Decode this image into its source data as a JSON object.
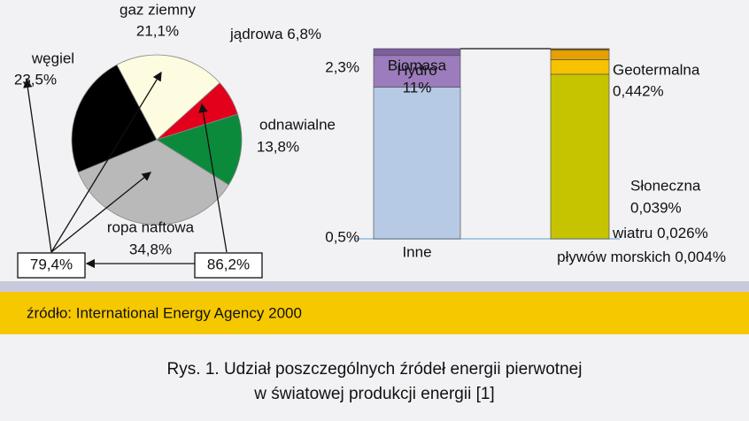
{
  "chart_data": [
    {
      "type": "pie",
      "categories": [
        "gaz ziemny",
        "jądrowa",
        "odnawialne",
        "ropa naftowa",
        "węgiel"
      ],
      "values": [
        21.1,
        6.8,
        13.8,
        34.8,
        23.5
      ],
      "value_labels": [
        "21,1%",
        "6,8%",
        "13,8%",
        "34,8%",
        "23,5%"
      ],
      "colors": [
        "#fdfbe0",
        "#e3001b",
        "#0b8a3c",
        "#b9b9b9",
        "#000000"
      ],
      "annotations": [
        "79,4%",
        "86,2%"
      ]
    },
    {
      "type": "stacked_bar",
      "bars": [
        {
          "categories": [
            "Biomasa",
            "Hydro",
            "Inne"
          ],
          "values": [
            11,
            2.3,
            0.5
          ],
          "value_labels": [
            "11%",
            "2,3%",
            "0,5%"
          ],
          "colors": [
            "#b6cae6",
            "#9c7cbc",
            "#7e5e9e"
          ]
        },
        {
          "categories": [
            "Geotermalna",
            "Słoneczna",
            "wiatru",
            "pływów morskich"
          ],
          "values": [
            0.442,
            0.039,
            0.026,
            0.004
          ],
          "value_labels": [
            "0,442%",
            "0,039%",
            "0,026%",
            "0,004%"
          ],
          "colors": [
            "#c6c400",
            "#f7c200",
            "#e6a000",
            "#7a5a00"
          ]
        }
      ]
    }
  ],
  "source": "źródło: International Energy Agency 2000",
  "caption": [
    "Rys. 1. Udział poszczególnych źródeł energii pierwotnej",
    "w światowej produkcji energii [1]"
  ]
}
